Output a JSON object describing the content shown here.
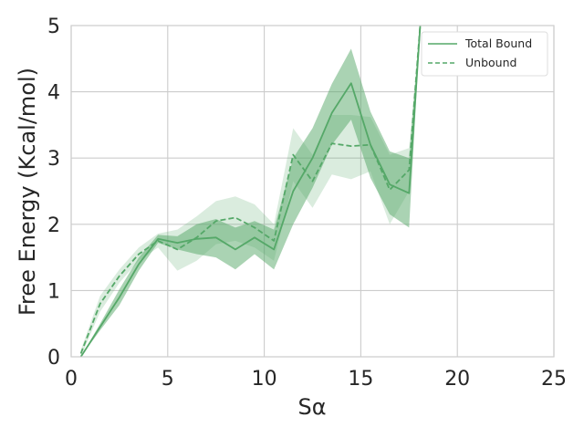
{
  "chart_data": {
    "type": "line",
    "xlabel": "Sα",
    "ylabel": "Free Energy (Kcal/mol)",
    "xlim": [
      0,
      25
    ],
    "ylim": [
      0,
      5
    ],
    "xticks": [
      0,
      5,
      10,
      15,
      20,
      25
    ],
    "yticks": [
      0,
      1,
      2,
      3,
      4,
      5
    ],
    "grid": true,
    "legend_position": "top-right",
    "series": [
      {
        "name": "Total Bound",
        "style": "solid",
        "color": "#55a868",
        "x": [
          0.5,
          1.5,
          2.5,
          3.5,
          4.5,
          5.5,
          6.5,
          7.5,
          8.5,
          9.5,
          10.5,
          11.5,
          12.5,
          13.5,
          14.5,
          15.5,
          16.5,
          17.5,
          18.1
        ],
        "y": [
          0.0,
          0.45,
          0.9,
          1.4,
          1.78,
          1.72,
          1.78,
          1.8,
          1.62,
          1.8,
          1.62,
          2.5,
          3.0,
          3.68,
          4.13,
          3.2,
          2.6,
          2.47,
          5.1
        ],
        "lower": [
          0.0,
          0.4,
          0.78,
          1.3,
          1.72,
          1.62,
          1.55,
          1.5,
          1.32,
          1.55,
          1.32,
          2.0,
          2.55,
          3.2,
          3.58,
          2.7,
          2.15,
          1.95,
          5.1
        ],
        "upper": [
          0.0,
          0.5,
          1.02,
          1.5,
          1.84,
          1.82,
          2.0,
          2.08,
          1.95,
          2.05,
          1.92,
          3.0,
          3.45,
          4.12,
          4.65,
          3.7,
          3.1,
          3.0,
          5.1
        ]
      },
      {
        "name": "Unbound",
        "style": "dashed",
        "color": "#55a868",
        "x": [
          0.5,
          1.5,
          2.5,
          3.5,
          4.5,
          5.5,
          6.5,
          7.5,
          8.5,
          9.5,
          10.5,
          11.5,
          12.5,
          13.5,
          14.5,
          15.5,
          16.5,
          17.5,
          18.1
        ],
        "y": [
          0.05,
          0.8,
          1.22,
          1.55,
          1.75,
          1.62,
          1.8,
          2.05,
          2.1,
          1.95,
          1.75,
          3.05,
          2.65,
          3.22,
          3.18,
          3.2,
          2.52,
          2.82,
          5.1
        ],
        "lower": [
          0.0,
          0.68,
          1.12,
          1.45,
          1.65,
          1.3,
          1.45,
          1.7,
          1.75,
          1.65,
          1.45,
          2.65,
          2.25,
          2.75,
          2.68,
          2.8,
          2.0,
          2.5,
          5.1
        ],
        "upper": [
          0.1,
          0.92,
          1.32,
          1.65,
          1.86,
          1.92,
          2.12,
          2.35,
          2.42,
          2.3,
          2.0,
          3.45,
          3.05,
          3.65,
          3.65,
          3.62,
          3.05,
          3.15,
          5.1
        ]
      }
    ]
  }
}
